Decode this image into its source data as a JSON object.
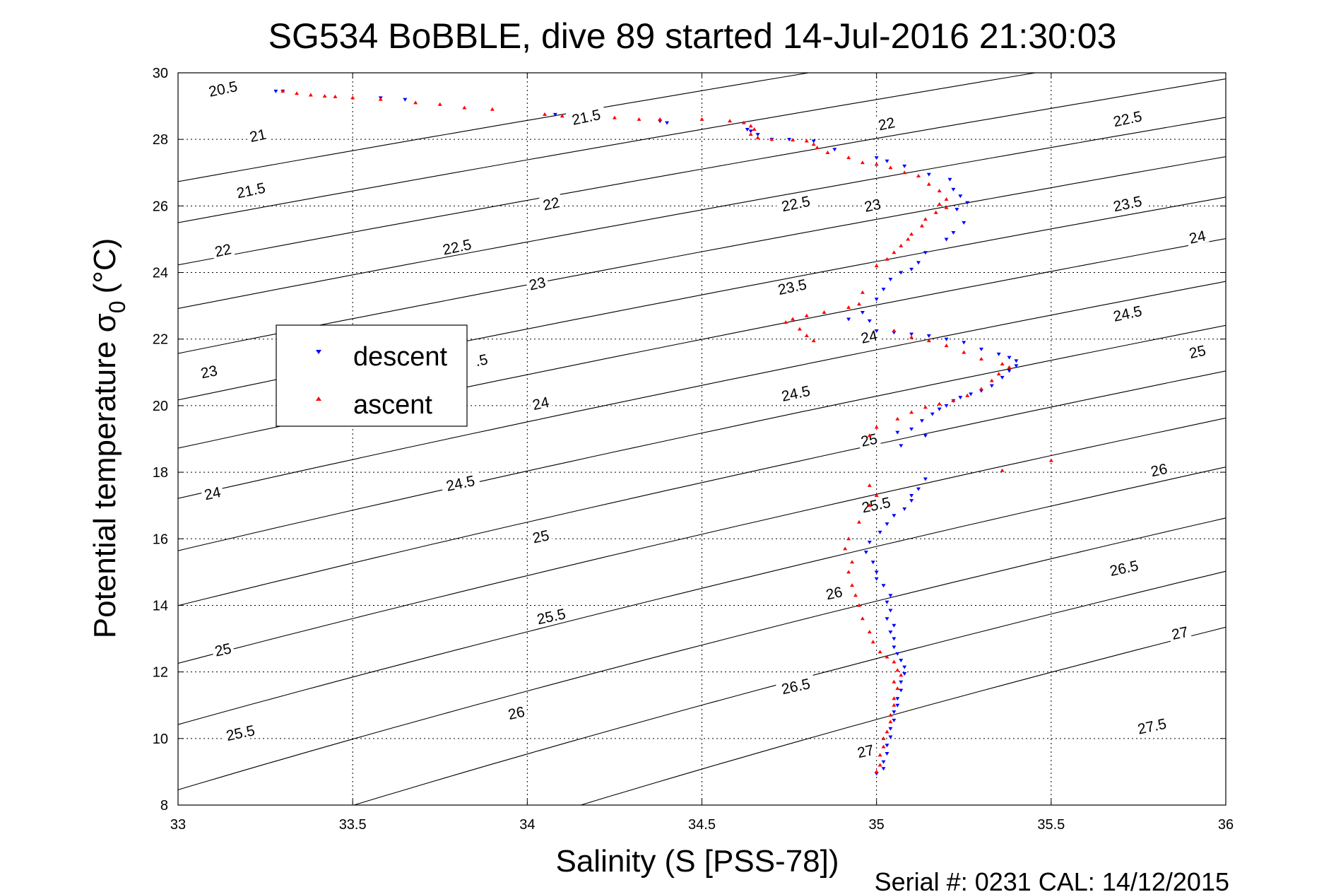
{
  "chart_data": {
    "type": "scatter",
    "title": "SG534 BoBBLE, dive 89 started 14-Jul-2016 21:30:03",
    "xlabel": "Salinity (S [PSS-78])",
    "ylabel_main": "Potential temperature σ",
    "ylabel_sub": "0",
    "ylabel_unit": "(°C)",
    "footer": "Serial #: 0231  CAL: 14/12/2015",
    "xlim": [
      33,
      36
    ],
    "ylim": [
      8,
      30
    ],
    "xticks": [
      "33",
      "33.5",
      "34",
      "34.5",
      "35",
      "35.5",
      "36"
    ],
    "yticks": [
      "8",
      "10",
      "12",
      "14",
      "16",
      "18",
      "20",
      "22",
      "24",
      "26",
      "28",
      "30"
    ],
    "grid": true,
    "legend": {
      "position": "left-middle",
      "entries": [
        {
          "label": "descent",
          "color": "#0000ff",
          "marker": "triangle-down"
        },
        {
          "label": "ascent",
          "color": "#ff0000",
          "marker": "triangle-up"
        }
      ]
    },
    "contour_levels": [
      "20.5",
      "21",
      "21.5",
      "22",
      "22.5",
      "23",
      "23.5",
      "24",
      "24.5",
      "25",
      "25.5",
      "26",
      "26.5",
      "27",
      "27.5"
    ],
    "contour_labels": [
      {
        "text": "20.5",
        "s": 33.13,
        "t": 29.45
      },
      {
        "text": "21",
        "s": 33.23,
        "t": 28.05
      },
      {
        "text": "21.5",
        "s": 33.21,
        "t": 26.4
      },
      {
        "text": "22",
        "s": 33.13,
        "t": 24.6
      },
      {
        "text": "23",
        "s": 33.09,
        "t": 20.95
      },
      {
        "text": "24",
        "s": 33.1,
        "t": 17.3
      },
      {
        "text": "25",
        "s": 33.13,
        "t": 12.6
      },
      {
        "text": "25.5",
        "s": 33.18,
        "t": 10.1
      },
      {
        "text": "21.5",
        "s": 34.17,
        "t": 28.6
      },
      {
        "text": "22",
        "s": 34.07,
        "t": 26.0
      },
      {
        "text": "22.5",
        "s": 33.8,
        "t": 24.7
      },
      {
        "text": "23",
        "s": 34.03,
        "t": 23.6
      },
      {
        "text": ".5",
        "s": 33.87,
        "t": 21.3
      },
      {
        "text": "24",
        "s": 34.04,
        "t": 20.0
      },
      {
        "text": "24.5",
        "s": 33.81,
        "t": 17.6
      },
      {
        "text": "25",
        "s": 34.04,
        "t": 16.0
      },
      {
        "text": "25.5",
        "s": 34.07,
        "t": 13.6
      },
      {
        "text": "26",
        "s": 33.97,
        "t": 10.7
      },
      {
        "text": "22",
        "s": 35.03,
        "t": 28.4
      },
      {
        "text": "22.5",
        "s": 34.77,
        "t": 26.0
      },
      {
        "text": "23",
        "s": 34.99,
        "t": 25.95
      },
      {
        "text": "23.5",
        "s": 34.76,
        "t": 23.5
      },
      {
        "text": "24",
        "s": 34.98,
        "t": 22.0
      },
      {
        "text": "24.5",
        "s": 34.77,
        "t": 20.3
      },
      {
        "text": "25",
        "s": 34.98,
        "t": 18.9
      },
      {
        "text": "25.5",
        "s": 35.0,
        "t": 16.95
      },
      {
        "text": "26",
        "s": 34.88,
        "t": 14.3
      },
      {
        "text": "26.5",
        "s": 34.77,
        "t": 11.5
      },
      {
        "text": "27",
        "s": 34.97,
        "t": 9.55
      },
      {
        "text": "22.5",
        "s": 35.72,
        "t": 28.55
      },
      {
        "text": "23.5",
        "s": 35.72,
        "t": 26.0
      },
      {
        "text": "24",
        "s": 35.92,
        "t": 25.0
      },
      {
        "text": "24.5",
        "s": 35.72,
        "t": 22.7
      },
      {
        "text": "25",
        "s": 35.92,
        "t": 21.55
      },
      {
        "text": "26",
        "s": 35.81,
        "t": 18.0
      },
      {
        "text": "26.5",
        "s": 35.71,
        "t": 15.05
      },
      {
        "text": "27",
        "s": 35.87,
        "t": 13.1
      },
      {
        "text": "27.5",
        "s": 35.79,
        "t": 10.3
      }
    ],
    "series": [
      {
        "name": "descent",
        "color": "#0000ff",
        "marker": "triangle-down",
        "points": [
          [
            33.28,
            29.45
          ],
          [
            33.3,
            29.45
          ],
          [
            33.58,
            29.25
          ],
          [
            33.65,
            29.2
          ],
          [
            34.08,
            28.75
          ],
          [
            34.38,
            28.55
          ],
          [
            34.4,
            28.5
          ],
          [
            34.63,
            28.3
          ],
          [
            34.64,
            28.25
          ],
          [
            34.66,
            28.15
          ],
          [
            34.7,
            28.0
          ],
          [
            34.75,
            28.0
          ],
          [
            34.82,
            27.95
          ],
          [
            34.88,
            27.7
          ],
          [
            35.0,
            27.45
          ],
          [
            35.03,
            27.35
          ],
          [
            35.08,
            27.2
          ],
          [
            35.15,
            26.95
          ],
          [
            35.21,
            26.8
          ],
          [
            35.22,
            26.5
          ],
          [
            35.24,
            26.3
          ],
          [
            35.26,
            26.1
          ],
          [
            35.23,
            25.9
          ],
          [
            35.25,
            25.5
          ],
          [
            35.22,
            25.2
          ],
          [
            35.2,
            25.0
          ],
          [
            35.14,
            24.6
          ],
          [
            35.12,
            24.3
          ],
          [
            35.1,
            24.1
          ],
          [
            35.07,
            24.0
          ],
          [
            35.04,
            23.8
          ],
          [
            35.02,
            23.5
          ],
          [
            35.0,
            23.2
          ],
          [
            34.96,
            22.8
          ],
          [
            34.92,
            22.6
          ],
          [
            34.98,
            22.55
          ],
          [
            35.0,
            22.25
          ],
          [
            35.05,
            22.2
          ],
          [
            35.1,
            22.15
          ],
          [
            35.15,
            22.1
          ],
          [
            35.2,
            22.0
          ],
          [
            35.25,
            21.9
          ],
          [
            35.3,
            21.7
          ],
          [
            35.35,
            21.55
          ],
          [
            35.38,
            21.45
          ],
          [
            35.4,
            21.35
          ],
          [
            35.4,
            21.2
          ],
          [
            35.38,
            21.05
          ],
          [
            35.36,
            20.85
          ],
          [
            35.33,
            20.6
          ],
          [
            35.3,
            20.45
          ],
          [
            35.27,
            20.35
          ],
          [
            35.24,
            20.25
          ],
          [
            35.22,
            20.15
          ],
          [
            35.2,
            20.0
          ],
          [
            35.18,
            19.9
          ],
          [
            35.16,
            19.75
          ],
          [
            35.13,
            19.55
          ],
          [
            35.1,
            19.3
          ],
          [
            35.06,
            19.2
          ],
          [
            35.14,
            19.1
          ],
          [
            35.07,
            18.8
          ],
          [
            35.14,
            17.8
          ],
          [
            35.12,
            17.5
          ],
          [
            35.1,
            17.3
          ],
          [
            35.1,
            17.15
          ],
          [
            35.08,
            16.9
          ],
          [
            35.05,
            16.7
          ],
          [
            35.03,
            16.45
          ],
          [
            35.01,
            16.2
          ],
          [
            34.98,
            15.9
          ],
          [
            34.97,
            15.6
          ],
          [
            34.99,
            15.3
          ],
          [
            35.0,
            15.0
          ],
          [
            35.0,
            14.8
          ],
          [
            35.02,
            14.6
          ],
          [
            35.04,
            14.3
          ],
          [
            35.03,
            14.1
          ],
          [
            35.04,
            13.85
          ],
          [
            35.03,
            13.6
          ],
          [
            35.05,
            13.4
          ],
          [
            35.04,
            13.2
          ],
          [
            35.05,
            13.0
          ],
          [
            35.05,
            12.75
          ],
          [
            35.06,
            12.55
          ],
          [
            35.07,
            12.35
          ],
          [
            35.08,
            12.15
          ],
          [
            35.08,
            11.95
          ],
          [
            35.07,
            11.7
          ],
          [
            35.07,
            11.45
          ],
          [
            35.06,
            11.2
          ],
          [
            35.06,
            11.0
          ],
          [
            35.05,
            10.8
          ],
          [
            35.05,
            10.55
          ],
          [
            35.04,
            10.3
          ],
          [
            35.04,
            10.05
          ],
          [
            35.03,
            9.8
          ],
          [
            35.03,
            9.55
          ],
          [
            35.02,
            9.3
          ],
          [
            35.02,
            9.1
          ],
          [
            35.0,
            8.95
          ]
        ]
      },
      {
        "name": "ascent",
        "color": "#ff0000",
        "marker": "triangle-up",
        "points": [
          [
            33.3,
            29.45
          ],
          [
            33.34,
            29.38
          ],
          [
            33.38,
            29.33
          ],
          [
            33.42,
            29.3
          ],
          [
            33.45,
            29.28
          ],
          [
            33.5,
            29.25
          ],
          [
            33.58,
            29.2
          ],
          [
            33.68,
            29.1
          ],
          [
            33.75,
            29.05
          ],
          [
            33.82,
            28.95
          ],
          [
            33.9,
            28.9
          ],
          [
            34.05,
            28.75
          ],
          [
            34.1,
            28.7
          ],
          [
            34.25,
            28.65
          ],
          [
            34.32,
            28.6
          ],
          [
            34.38,
            28.6
          ],
          [
            34.5,
            28.6
          ],
          [
            34.58,
            28.55
          ],
          [
            34.62,
            28.5
          ],
          [
            34.64,
            28.4
          ],
          [
            34.65,
            28.3
          ],
          [
            34.64,
            28.15
          ],
          [
            34.66,
            28.05
          ],
          [
            34.7,
            28.0
          ],
          [
            34.76,
            27.98
          ],
          [
            34.8,
            27.95
          ],
          [
            34.82,
            27.85
          ],
          [
            34.83,
            27.75
          ],
          [
            34.86,
            27.6
          ],
          [
            34.92,
            27.45
          ],
          [
            34.96,
            27.3
          ],
          [
            35.0,
            27.25
          ],
          [
            35.04,
            27.15
          ],
          [
            35.08,
            27.0
          ],
          [
            35.12,
            26.9
          ],
          [
            35.15,
            26.65
          ],
          [
            35.18,
            26.45
          ],
          [
            35.2,
            26.2
          ],
          [
            35.18,
            26.05
          ],
          [
            35.2,
            25.95
          ],
          [
            35.17,
            25.8
          ],
          [
            35.14,
            25.6
          ],
          [
            35.13,
            25.4
          ],
          [
            35.1,
            25.15
          ],
          [
            35.09,
            25.0
          ],
          [
            35.07,
            24.8
          ],
          [
            35.05,
            24.6
          ],
          [
            35.03,
            24.4
          ],
          [
            35.0,
            24.2
          ],
          [
            34.96,
            23.4
          ],
          [
            34.95,
            23.05
          ],
          [
            34.92,
            22.95
          ],
          [
            34.85,
            22.8
          ],
          [
            34.8,
            22.7
          ],
          [
            34.76,
            22.6
          ],
          [
            34.74,
            22.5
          ],
          [
            34.78,
            22.3
          ],
          [
            34.8,
            22.1
          ],
          [
            34.82,
            21.95
          ],
          [
            35.05,
            22.25
          ],
          [
            35.1,
            22.05
          ],
          [
            35.15,
            21.95
          ],
          [
            35.2,
            21.8
          ],
          [
            35.25,
            21.6
          ],
          [
            35.3,
            21.4
          ],
          [
            35.36,
            21.25
          ],
          [
            35.38,
            21.15
          ],
          [
            35.35,
            20.95
          ],
          [
            35.33,
            20.75
          ],
          [
            35.3,
            20.5
          ],
          [
            35.26,
            20.3
          ],
          [
            35.22,
            20.15
          ],
          [
            35.18,
            20.05
          ],
          [
            35.14,
            19.95
          ],
          [
            35.1,
            19.8
          ],
          [
            35.06,
            19.6
          ],
          [
            35.0,
            19.35
          ],
          [
            34.98,
            19.1
          ],
          [
            35.36,
            18.05
          ],
          [
            35.5,
            18.35
          ],
          [
            34.98,
            17.6
          ],
          [
            35.0,
            17.3
          ],
          [
            34.98,
            17.0
          ],
          [
            34.95,
            16.5
          ],
          [
            34.92,
            16.0
          ],
          [
            34.91,
            15.7
          ],
          [
            34.93,
            15.3
          ],
          [
            34.92,
            15.0
          ],
          [
            34.93,
            14.6
          ],
          [
            34.94,
            14.3
          ],
          [
            34.95,
            14.0
          ],
          [
            34.96,
            13.6
          ],
          [
            34.98,
            13.2
          ],
          [
            34.99,
            12.9
          ],
          [
            35.01,
            12.6
          ],
          [
            35.03,
            12.45
          ],
          [
            35.05,
            12.3
          ],
          [
            35.06,
            12.05
          ],
          [
            35.07,
            11.9
          ],
          [
            35.05,
            11.7
          ],
          [
            35.06,
            11.5
          ],
          [
            35.05,
            11.2
          ],
          [
            35.05,
            11.0
          ],
          [
            35.04,
            10.7
          ],
          [
            35.04,
            10.5
          ],
          [
            35.03,
            10.2
          ],
          [
            35.02,
            10.0
          ],
          [
            35.02,
            9.75
          ],
          [
            35.01,
            9.5
          ],
          [
            35.01,
            9.2
          ],
          [
            35.0,
            9.0
          ]
        ]
      }
    ]
  }
}
